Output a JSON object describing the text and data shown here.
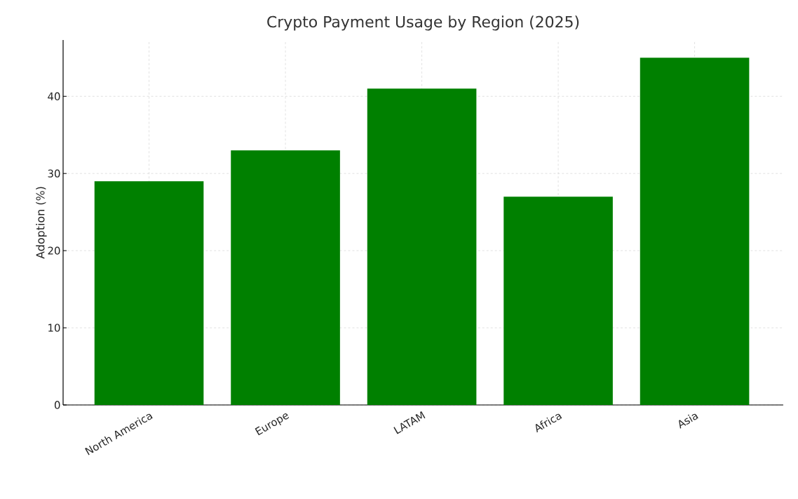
{
  "chart_data": {
    "type": "bar",
    "title": "Crypto Payment Usage by Region (2025)",
    "ylabel": "Adoption (%)",
    "categories": [
      "North America",
      "Europe",
      "LATAM",
      "Africa",
      "Asia"
    ],
    "values": [
      29,
      33,
      41,
      27,
      45
    ],
    "color": "#008000",
    "ylim": [
      0,
      47.3
    ],
    "yticks": [
      0,
      10,
      20,
      30,
      40
    ],
    "grid": true,
    "line_style": "dashed"
  }
}
